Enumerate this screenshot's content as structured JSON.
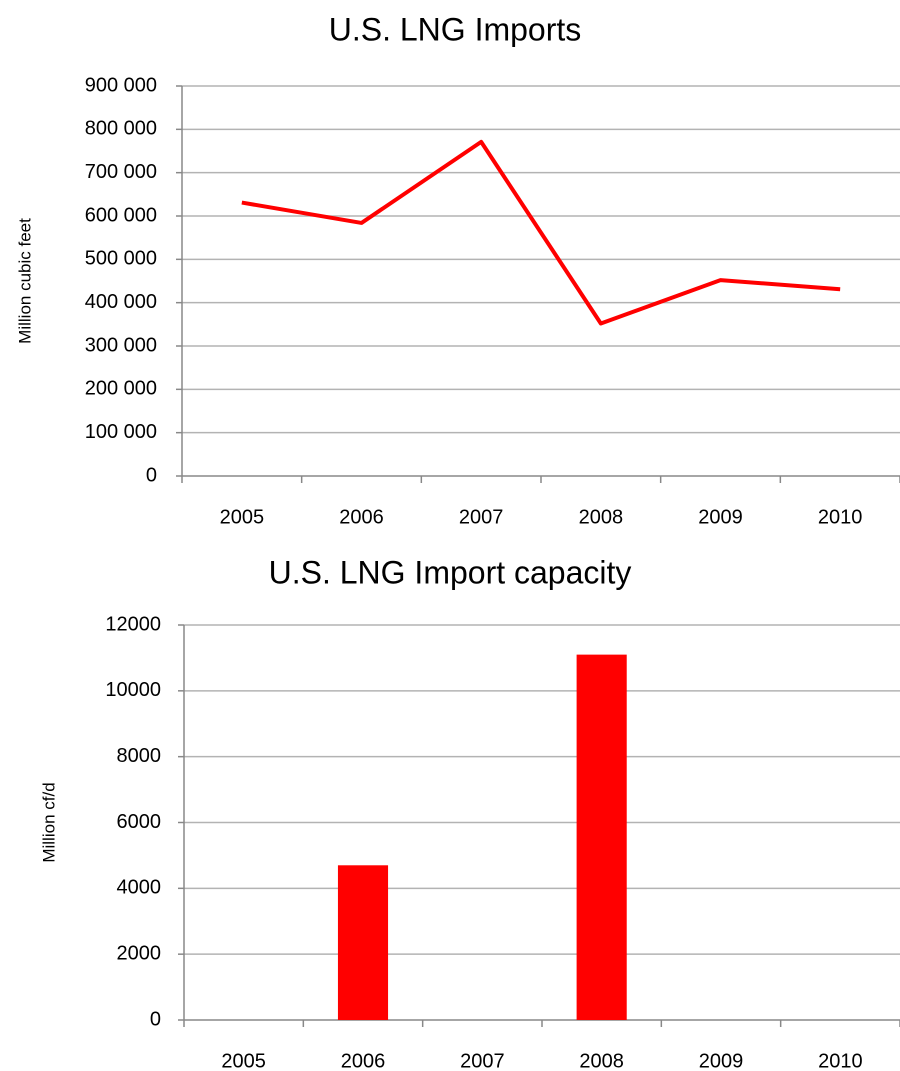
{
  "chart_data": [
    {
      "type": "line",
      "title": "U.S. LNG Imports",
      "ylabel": "Million cubic feet",
      "categories": [
        "2005",
        "2006",
        "2007",
        "2008",
        "2009",
        "2010"
      ],
      "series": [
        {
          "name": "U.S. LNG Imports",
          "color": "#ff0000",
          "values": [
            631000,
            584000,
            771000,
            352000,
            452000,
            431000
          ]
        }
      ],
      "ylim": [
        0,
        900000
      ],
      "yticks": [
        0,
        {
          "value": 100000,
          "label": "100 000"
        },
        {
          "value": 200000,
          "label": "200 000"
        },
        {
          "value": 300000,
          "label": "300 000"
        },
        {
          "value": 400000,
          "label": "400 000"
        },
        {
          "value": 500000,
          "label": "500 000"
        },
        {
          "value": 600000,
          "label": "600 000"
        },
        {
          "value": 700000,
          "label": "700 000"
        },
        {
          "value": 800000,
          "label": "800 000"
        },
        {
          "value": 900000,
          "label": "900 000"
        }
      ],
      "grid": true
    },
    {
      "type": "bar",
      "title": "U.S. LNG Import capacity",
      "ylabel": "Million cf/d",
      "categories": [
        "2005",
        "2006",
        "2007",
        "2008",
        "2009",
        "2010"
      ],
      "values": [
        0,
        4700,
        0,
        11100,
        0,
        0
      ],
      "color": "#ff0000",
      "ylim": [
        0,
        12000
      ],
      "yticks": [
        0,
        2000,
        4000,
        6000,
        8000,
        10000,
        12000
      ],
      "grid": true
    }
  ]
}
